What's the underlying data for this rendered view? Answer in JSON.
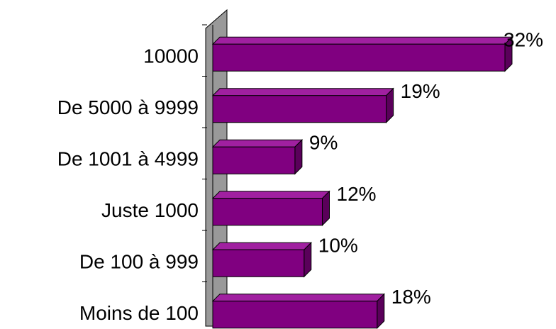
{
  "chart_data": {
    "type": "bar3d-horizontal",
    "categories": [
      "10000",
      "De 5000 à 9999",
      "De 1001 à 4999",
      "Juste 1000",
      "De 100 à 999",
      "Moins de 100"
    ],
    "values": [
      32,
      19,
      9,
      12,
      10,
      18
    ],
    "value_labels": [
      "32%",
      "19%",
      "9%",
      "12%",
      "10%",
      "18%"
    ],
    "color": "#800080"
  }
}
